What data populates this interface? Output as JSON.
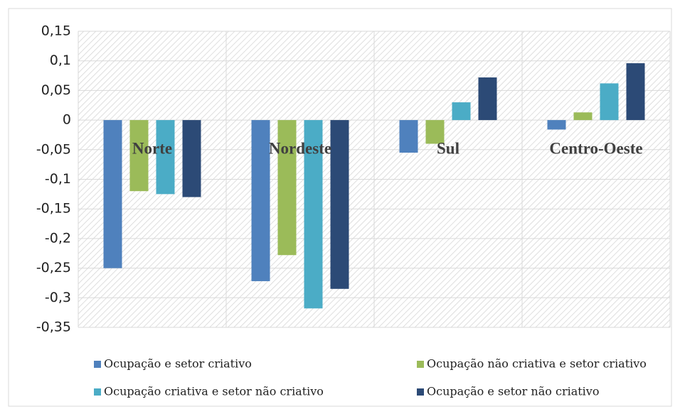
{
  "chart_data": {
    "type": "bar",
    "categories": [
      "Norte",
      "Nordeste",
      "Sul",
      "Centro-Oeste"
    ],
    "series": [
      {
        "name": "Ocupação e setor criativo",
        "color": "#4f81bd",
        "values": [
          -0.25,
          -0.272,
          -0.055,
          -0.016
        ]
      },
      {
        "name": "Ocupação não criativa e setor criativo",
        "color": "#9bbb59",
        "values": [
          -0.12,
          -0.228,
          -0.04,
          0.013
        ]
      },
      {
        "name": "Ocupação criativa e setor não criativo",
        "color": "#4bacc6",
        "values": [
          -0.125,
          -0.318,
          0.03,
          0.062
        ]
      },
      {
        "name": "Ocupação e setor não criativo",
        "color": "#2c4a76",
        "values": [
          -0.13,
          -0.285,
          0.072,
          0.096
        ]
      }
    ],
    "ylim": [
      -0.35,
      0.15
    ],
    "yticks": [
      {
        "value": 0.15,
        "label": "0,15"
      },
      {
        "value": 0.1,
        "label": "0,1"
      },
      {
        "value": 0.05,
        "label": "0,05"
      },
      0,
      {
        "value": -0.05,
        "label": "-0,05"
      },
      {
        "value": -0.1,
        "label": "-0,1"
      },
      {
        "value": -0.15,
        "label": "-0,15"
      },
      {
        "value": -0.2,
        "label": "-0,2"
      },
      {
        "value": -0.25,
        "label": "-0,25"
      },
      {
        "value": -0.3,
        "label": "-0,3"
      },
      {
        "value": -0.35,
        "label": "-0,35"
      }
    ],
    "grid": true
  }
}
